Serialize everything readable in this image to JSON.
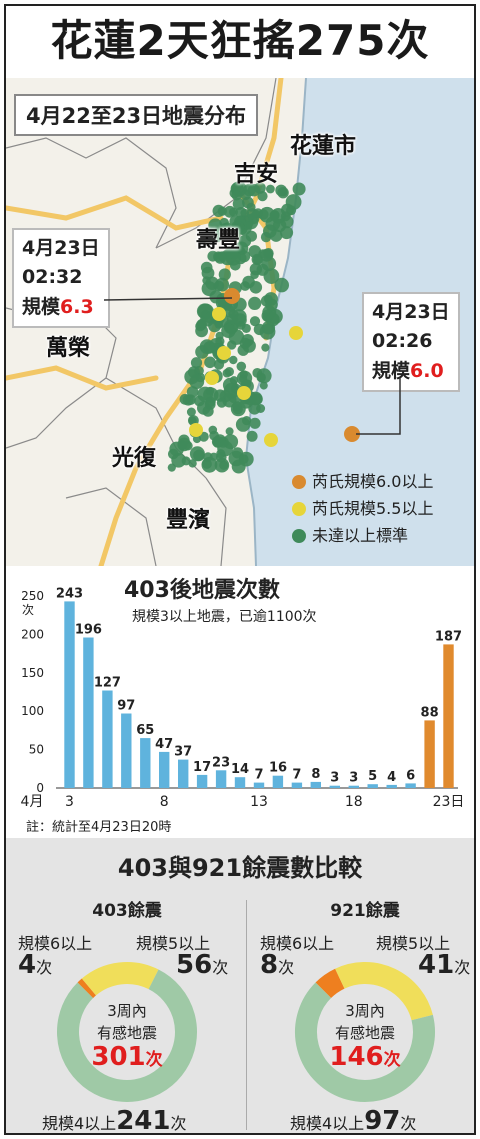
{
  "title": "花蓮2天狂搖275次",
  "map": {
    "subtitle": "4月22至23日地震分布",
    "places": {
      "hualien_city": "花蓮市",
      "jian": "吉安",
      "shoufeng": "壽豐",
      "wanrong": "萬榮",
      "guangfu": "光復",
      "fengbin": "豐濱"
    },
    "callout_left": {
      "date": "4月23日",
      "time": "02:32",
      "mag_label": "規模",
      "mag_value": "6.3"
    },
    "callout_right": {
      "date": "4月23日",
      "time": "02:26",
      "mag_label": "規模",
      "mag_value": "6.0"
    },
    "legend": [
      {
        "label": "芮氏規模6.0以上",
        "color": "#d98a2f"
      },
      {
        "label": "芮氏規模5.5以上",
        "color": "#e6d53a"
      },
      {
        "label": "未達以上標準",
        "color": "#3f8a5a"
      }
    ],
    "colors": {
      "sea": "#cfe0ec",
      "land": "#f3f1ea",
      "road": "#f2c766",
      "boundary": "#8a8a8a"
    }
  },
  "chart_data": [
    {
      "type": "bar",
      "title": "403後地震次數",
      "subtitle": "規模3以上地震，已逾1100次",
      "ylabel": "次",
      "ylim": [
        0,
        250
      ],
      "yticks": [
        "0",
        "50",
        "100",
        "150",
        "200",
        "250"
      ],
      "x_tick_labels": [
        {
          "index": 0,
          "label": "3"
        },
        {
          "index": 5,
          "label": "8"
        },
        {
          "index": 10,
          "label": "13"
        },
        {
          "index": 15,
          "label": "18"
        },
        {
          "index": 20,
          "label": "23日"
        }
      ],
      "month_label": "4月",
      "values": [
        243,
        196,
        127,
        97,
        65,
        47,
        37,
        17,
        23,
        14,
        7,
        16,
        7,
        8,
        3,
        3,
        5,
        4,
        6,
        88,
        187
      ],
      "colors": [
        "#5fb3dd",
        "#5fb3dd",
        "#5fb3dd",
        "#5fb3dd",
        "#5fb3dd",
        "#5fb3dd",
        "#5fb3dd",
        "#5fb3dd",
        "#5fb3dd",
        "#5fb3dd",
        "#5fb3dd",
        "#5fb3dd",
        "#5fb3dd",
        "#5fb3dd",
        "#5fb3dd",
        "#5fb3dd",
        "#5fb3dd",
        "#5fb3dd",
        "#5fb3dd",
        "#e08a2e",
        "#e08a2e"
      ],
      "note": "註：統計至4月23日20時"
    },
    {
      "type": "pie",
      "title": "403餘震",
      "slices": [
        {
          "label": "規模6以上",
          "value": 4,
          "color": "#ee7f1f"
        },
        {
          "label": "規模5以上",
          "value": 56,
          "color": "#f0de5a"
        },
        {
          "label": "規模4以上",
          "value": 241,
          "color": "#9fc9a6"
        }
      ],
      "center_label": "3周內\n有感地震",
      "total": 301
    },
    {
      "type": "pie",
      "title": "921餘震",
      "slices": [
        {
          "label": "規模6以上",
          "value": 8,
          "color": "#ee7f1f"
        },
        {
          "label": "規模5以上",
          "value": 41,
          "color": "#f0de5a"
        },
        {
          "label": "規模4以上",
          "value": 97,
          "color": "#9fc9a6"
        }
      ],
      "center_label": "3周內\n有感地震",
      "total": 146
    }
  ],
  "comparison": {
    "title": "403與921餘震數比較",
    "unit": "次",
    "left": {
      "title": "403餘震",
      "m6_label": "規模6以上",
      "m6_value": "4",
      "m5_label": "規模5以上",
      "m5_value": "56",
      "m4_label": "規模4以上",
      "m4_value": "241",
      "center_line1": "3周內",
      "center_line2": "有感地震",
      "center_total": "301"
    },
    "right": {
      "title": "921餘震",
      "m6_label": "規模6以上",
      "m6_value": "8",
      "m5_label": "規模5以上",
      "m5_value": "41",
      "m4_label": "規模4以上",
      "m4_value": "97",
      "center_line1": "3周內",
      "center_line2": "有感地震",
      "center_total": "146"
    }
  }
}
